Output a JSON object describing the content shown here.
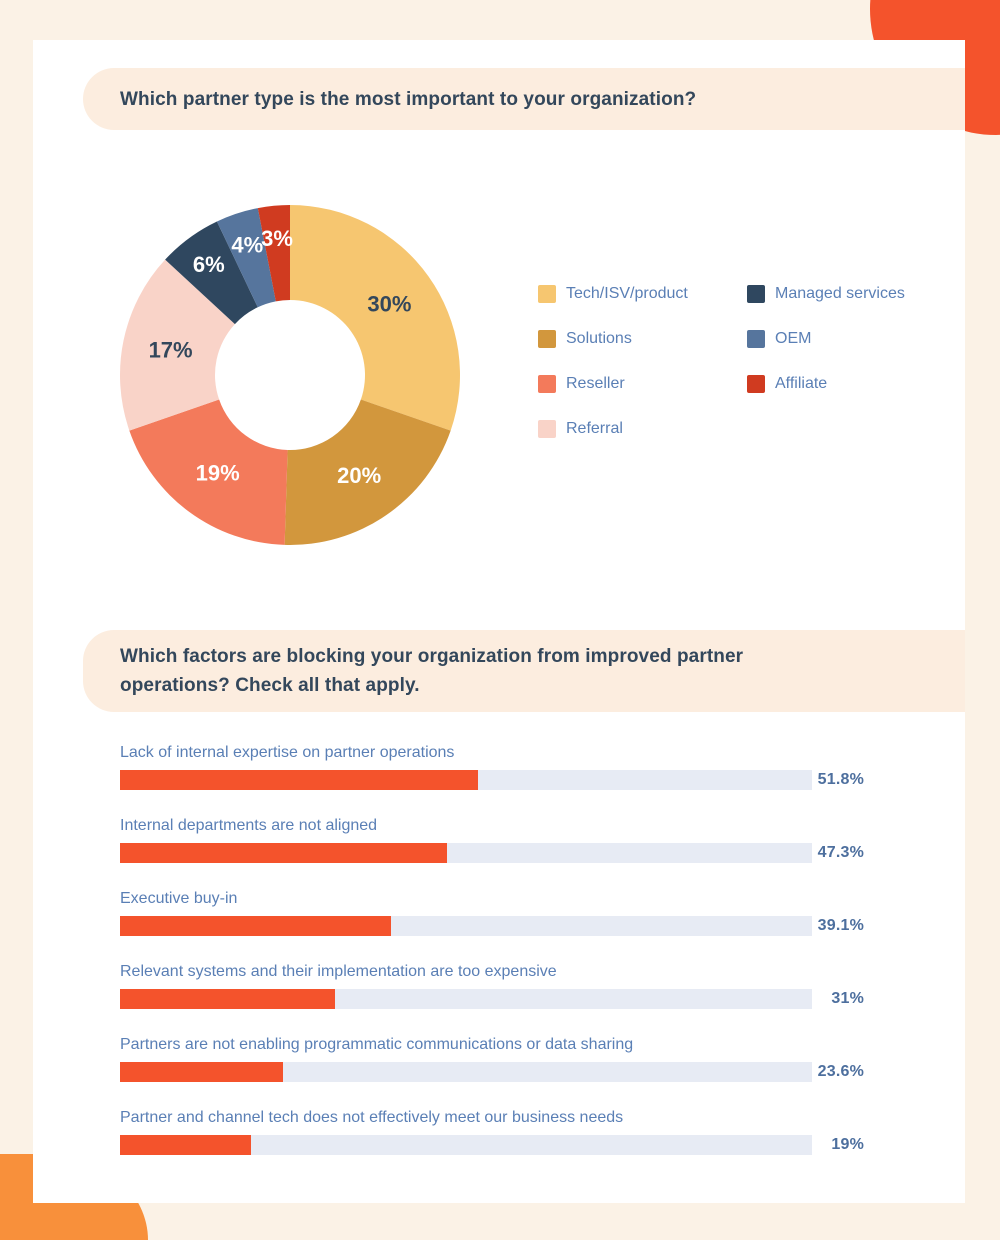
{
  "decor": {
    "top_right_color": "#F4532C",
    "bottom_left_color": "#F8903B"
  },
  "palette": {
    "page_background": "#FBF2E6",
    "card_background": "#FFFFFF",
    "banner_background": "#FCEDDF",
    "title_text": "#33475B",
    "legend_text": "#5A7FB5",
    "bar_label_text": "#5A7FB5",
    "bar_value_text": "#4D6F9E"
  },
  "chart_data": [
    {
      "type": "pie",
      "subtype": "donut",
      "title": "Which partner type is the most important to your organization?",
      "legend_position": "right",
      "series": [
        {
          "label": "Tech/ISV/product",
          "value": 30,
          "pct_label": "30%",
          "color": "#F6C670",
          "pct_label_color": "#33475B"
        },
        {
          "label": "Solutions",
          "value": 20,
          "pct_label": "20%",
          "color": "#D2973D",
          "pct_label_color": "#FFFFFF"
        },
        {
          "label": "Reseller",
          "value": 19,
          "pct_label": "19%",
          "color": "#F37A5B",
          "pct_label_color": "#FFFFFF"
        },
        {
          "label": "Referral",
          "value": 17,
          "pct_label": "17%",
          "color": "#F9D3C8",
          "pct_label_color": "#33475B"
        },
        {
          "label": "Managed services",
          "value": 6,
          "pct_label": "6%",
          "color": "#2F475F",
          "pct_label_color": "#FFFFFF"
        },
        {
          "label": "OEM",
          "value": 4,
          "pct_label": "4%",
          "color": "#56759D",
          "pct_label_color": "#FFFFFF"
        },
        {
          "label": "Affiliate",
          "value": 3,
          "pct_label": "3%",
          "color": "#D03B20",
          "pct_label_color": "#FFFFFF"
        }
      ],
      "legend_columns": [
        [
          0,
          1,
          2,
          3
        ],
        [
          4,
          5,
          6
        ]
      ]
    },
    {
      "type": "bar",
      "orientation": "horizontal",
      "title": "Which factors are blocking your organization from improved partner operations? Check all that apply.",
      "categories": [
        "Lack of internal expertise on partner operations",
        "Internal departments are not aligned",
        "Executive buy-in",
        "Relevant systems and their implementation are too expensive",
        "Partners are not enabling programmatic communications or data sharing",
        "Partner and channel tech does not effectively meet our business needs"
      ],
      "values": [
        51.8,
        47.3,
        39.1,
        31,
        23.6,
        19
      ],
      "value_labels": [
        "51.8%",
        "47.3%",
        "39.1%",
        "31%",
        "23.6%",
        "19%"
      ],
      "xlim": [
        0,
        100
      ],
      "grid": false,
      "bar_color": "#F4532C",
      "track_color": "#E7EBF4"
    }
  ]
}
